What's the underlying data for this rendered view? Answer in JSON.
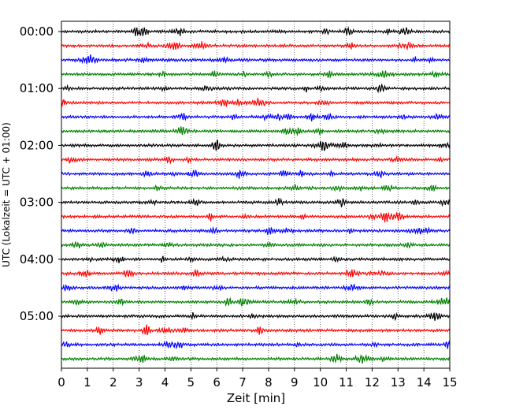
{
  "chart_data": {
    "type": "line",
    "title": "",
    "xlabel": "Zeit  [min]",
    "ylabel": "UTC (Lokalzeit = UTC + 01:00)",
    "xlim": [
      0,
      15
    ],
    "x_ticks": [
      0,
      1,
      2,
      3,
      4,
      5,
      6,
      7,
      8,
      9,
      10,
      11,
      12,
      13,
      14,
      15
    ],
    "x_tick_labels": [
      "0",
      "1",
      "2",
      "3",
      "4",
      "5",
      "6",
      "7",
      "8",
      "9",
      "10",
      "11",
      "12",
      "13",
      "14",
      "15"
    ],
    "y_tick_labels": [
      "00:00",
      "01:00",
      "02:00",
      "03:00",
      "04:00",
      "05:00"
    ],
    "y_ticks_row_index": [
      0,
      4,
      8,
      12,
      16,
      20
    ],
    "row_interval_minutes": 15,
    "rows": 24,
    "grid": "vertical-dotted",
    "series_colors": [
      "#000000",
      "#ff0000",
      "#0000ff",
      "#008000"
    ],
    "seismic_events": [
      {
        "row": 8,
        "minute": 10.1,
        "amplitude": 1.8
      },
      {
        "row": 3,
        "minute": 12.5,
        "amplitude": 1.4
      },
      {
        "row": 17,
        "minute": 11.2,
        "amplitude": 1.5
      },
      {
        "row": 10,
        "minute": 6.9,
        "amplitude": 1.4
      },
      {
        "row": 5,
        "minute": 7.6,
        "amplitude": 1.5
      }
    ]
  }
}
